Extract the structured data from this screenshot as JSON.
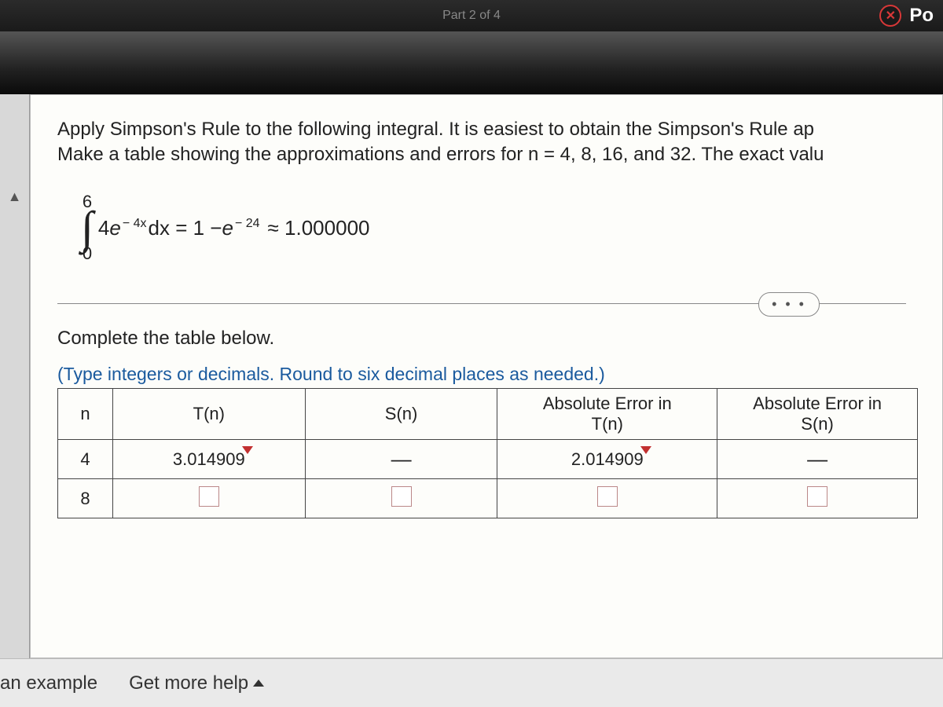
{
  "topbar": {
    "title": "Part 2 of 4",
    "right_text": "Po"
  },
  "problem": {
    "line1": "Apply Simpson's Rule to the following integral. It is easiest to obtain the Simpson's Rule ap",
    "line2": "Make a table showing the approximations and errors for n = 4, 8, 16, and 32. The exact valu"
  },
  "integral": {
    "upper": "6",
    "lower": "0",
    "coef": "4",
    "base": "e",
    "exp1": "− 4x",
    "dx": " dx = 1 − ",
    "base2": "e",
    "exp2": "− 24",
    "approx": " ≈ 1.000000"
  },
  "section": {
    "instruction": "Complete the table below.",
    "hint": "(Type integers or decimals. Round to six decimal places as needed.)"
  },
  "table": {
    "headers": {
      "n": "n",
      "tn": "T(n)",
      "sn": "S(n)",
      "etn_l1": "Absolute Error in",
      "etn_l2": "T(n)",
      "esn_l1": "Absolute Error in",
      "esn_l2": "S(n)"
    },
    "rows": [
      {
        "n": "4",
        "tn": "3.014909",
        "sn": "—",
        "etn": "2.014909",
        "esn": "—",
        "filled": true
      },
      {
        "n": "8",
        "tn": "",
        "sn": "",
        "etn": "",
        "esn": "",
        "filled": false
      }
    ]
  },
  "bottom": {
    "example": "an example",
    "help": "Get more help"
  },
  "ellipsis": "• • •"
}
